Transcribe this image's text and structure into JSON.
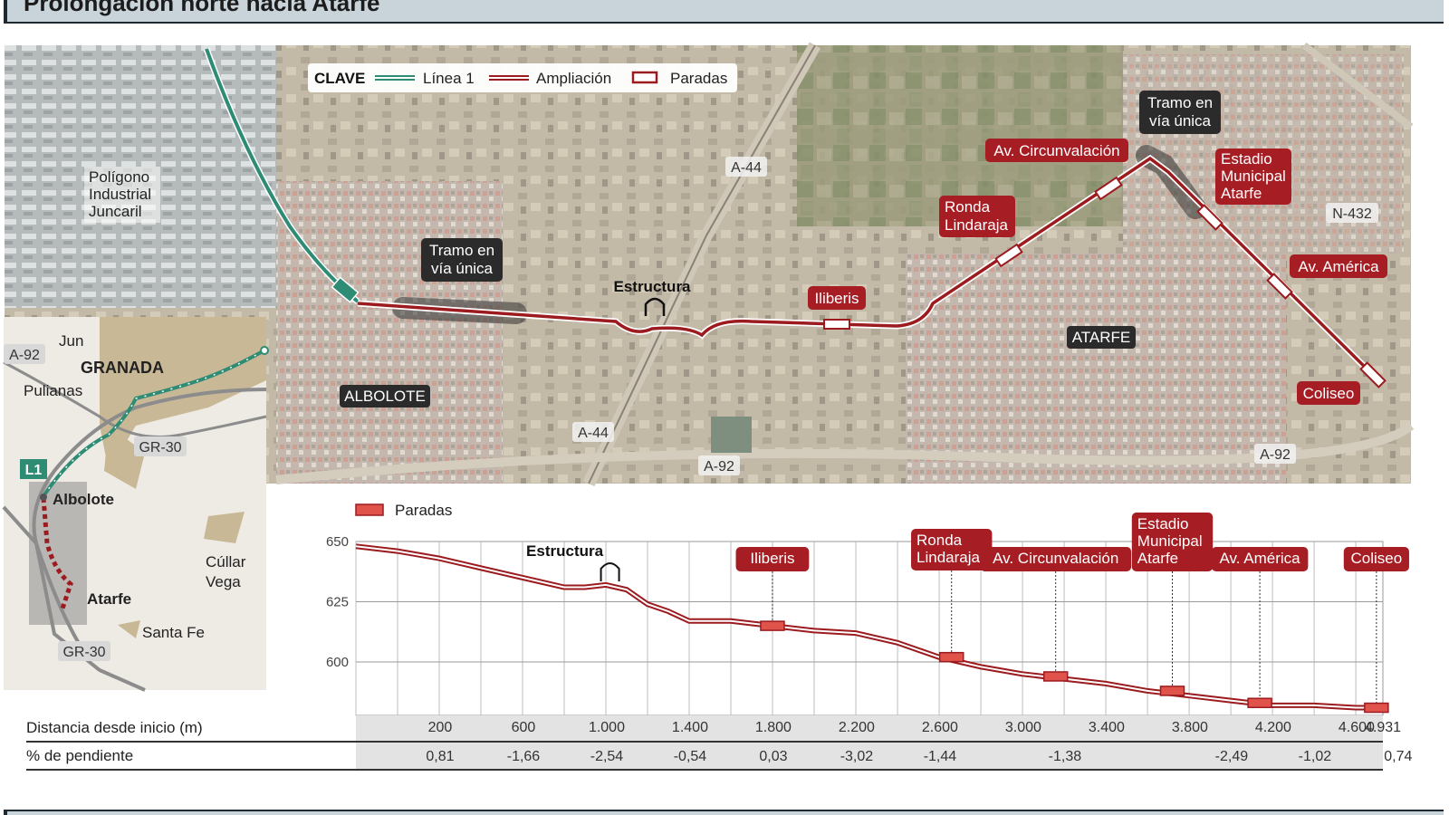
{
  "title": "Prolongación norte hacia Atarfe",
  "map": {
    "legend": {
      "key_label": "CLAVE",
      "items": [
        {
          "label": "Línea 1",
          "color": "#2e8b74"
        },
        {
          "label": "Ampliación",
          "color": "#9b1b1f"
        },
        {
          "label": "Paradas",
          "color": "#9b1b1f"
        }
      ]
    },
    "place_labels": {
      "poligono": "Polígono\nIndustrial\nJuncaril",
      "albolote": "ALBOLOTE",
      "atarfe": "ATARFE"
    },
    "road_labels": {
      "a44_top": "A-44",
      "a44_bottom": "A-44",
      "a92_bottom": "A-92",
      "a92_right": "A-92",
      "n432": "N-432"
    },
    "notes": {
      "tramo_1": "Tramo en\nvía única",
      "tramo_2": "Tramo en\nvía única",
      "estructura": "Estructura"
    },
    "stop_labels": {
      "iliberis": "Iliberis",
      "ronda": "Ronda\nLindaraja",
      "circunvalacion": "Av. Circunvalación",
      "estadio": "Estadio\nMunicipal\nAtarfe",
      "america": "Av. América",
      "coliseo": "Coliseo"
    }
  },
  "locator_map": {
    "labels": {
      "jun": "Jun",
      "granada": "GRANADA",
      "pulianas": "Pulianas",
      "a92": "A-92",
      "gr30_top": "GR-30",
      "gr30_bottom": "GR-30",
      "l1": "L1",
      "albolote": "Albolote",
      "atarfe": "Atarfe",
      "cullar": "Cúllar\nVega",
      "santafe": "Santa Fe"
    }
  },
  "chart_data": {
    "type": "line",
    "legend": "Paradas",
    "ylim": [
      575,
      655
    ],
    "y_ticks": [
      650,
      625,
      600
    ],
    "xlim": [
      0,
      4931
    ],
    "x": [
      0,
      200,
      400,
      600,
      800,
      1000,
      1100,
      1200,
      1300,
      1400,
      1500,
      1600,
      1800,
      2000,
      2200,
      2400,
      2600,
      2800,
      3000,
      3200,
      3400,
      3600,
      3800,
      4000,
      4200,
      4400,
      4600,
      4800,
      4931
    ],
    "y": [
      648,
      646,
      643,
      639,
      635,
      631,
      631,
      632,
      630,
      624,
      621,
      617,
      617,
      615,
      613,
      612,
      608,
      602,
      598,
      595,
      593,
      591,
      588,
      586,
      584,
      582,
      582,
      581,
      581
    ],
    "stops": [
      {
        "name": "Iliberis",
        "x": 2000,
        "y": 615
      },
      {
        "name": "Ronda\nLindaraja",
        "x": 2860,
        "y": 602
      },
      {
        "name": "Av. Circunvalación",
        "x": 3360,
        "y": 594
      },
      {
        "name": "Estadio\nMunicipal\nAtarfe",
        "x": 3920,
        "y": 588
      },
      {
        "name": "Av. América",
        "x": 4340,
        "y": 583
      },
      {
        "name": "Coliseo",
        "x": 4900,
        "y": 581
      }
    ],
    "annotation": {
      "label": "Estructura",
      "x": 1220
    },
    "distance_row": {
      "label": "Distancia desde inicio (m)",
      "values": [
        "200",
        "600",
        "1.000",
        "1.400",
        "1.800",
        "2.200",
        "2.600",
        "3.000",
        "3.400",
        "3.800",
        "4.200",
        "4.600",
        "4.931"
      ],
      "at": [
        200,
        600,
        1000,
        1400,
        1800,
        2200,
        2600,
        3000,
        3400,
        3800,
        4200,
        4600,
        4931
      ]
    },
    "slope_row": {
      "label": "% de pendiente",
      "values": [
        "0,81",
        "-1,66",
        "-2,54",
        "-0,54",
        "0,03",
        "-3,02",
        "-1,44",
        "-1,38",
        "-2,49",
        "-1,02",
        "0,74"
      ],
      "at": [
        200,
        600,
        1000,
        1400,
        1800,
        2200,
        2600,
        3200,
        4000,
        4400,
        4800
      ]
    }
  },
  "colors": {
    "line1": "#2e8b74",
    "extension": "#9b1b1f",
    "stop_fill": "#e0534a",
    "label_bg": "#a61d24",
    "dark_label": "#2b2b2b"
  }
}
